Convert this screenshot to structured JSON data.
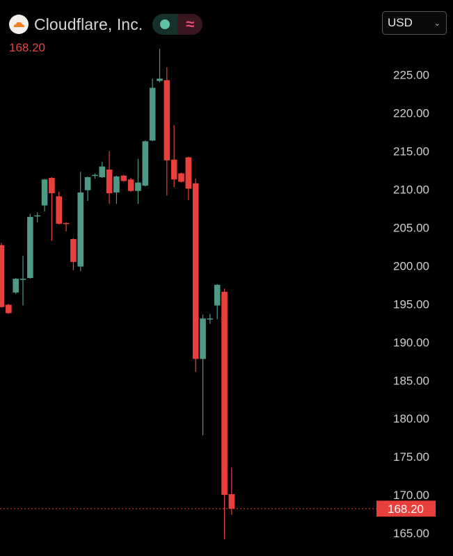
{
  "header": {
    "company": "Cloudflare, Inc.",
    "logo": "cloudflare-logo",
    "price": "168.20",
    "currency": "USD",
    "toggle_icons": [
      "dot-icon",
      "wave-icon"
    ]
  },
  "colors": {
    "up": "#4f9a86",
    "down": "#e8403d",
    "price_line": "#e8403d",
    "axis_text": "#cfcfcf"
  },
  "chart_data": {
    "type": "candlestick",
    "ylim": [
      162.0,
      234.8
    ],
    "y_ticks": [
      "225.00",
      "220.00",
      "215.00",
      "210.00",
      "205.00",
      "200.00",
      "195.00",
      "190.00",
      "185.00",
      "180.00",
      "175.00",
      "170.00",
      "165.00"
    ],
    "last_price": 168.2,
    "last_price_label": "168.20",
    "candles": [
      {
        "o": 202.7,
        "h": 203.0,
        "l": 194.5,
        "c": 194.6
      },
      {
        "o": 194.9,
        "h": 195.0,
        "l": 193.7,
        "c": 193.8
      },
      {
        "o": 196.5,
        "h": 198.4,
        "l": 196.3,
        "c": 198.3
      },
      {
        "o": 198.2,
        "h": 201.3,
        "l": 194.8,
        "c": 198.3
      },
      {
        "o": 198.4,
        "h": 206.8,
        "l": 198.3,
        "c": 206.4
      },
      {
        "o": 206.5,
        "h": 207.0,
        "l": 205.7,
        "c": 206.6
      },
      {
        "o": 207.9,
        "h": 211.4,
        "l": 207.1,
        "c": 211.3
      },
      {
        "o": 211.5,
        "h": 211.6,
        "l": 203.3,
        "c": 209.5
      },
      {
        "o": 209.1,
        "h": 209.7,
        "l": 205.4,
        "c": 205.5
      },
      {
        "o": 205.6,
        "h": 205.7,
        "l": 204.5,
        "c": 205.5
      },
      {
        "o": 203.5,
        "h": 203.6,
        "l": 199.4,
        "c": 200.5
      },
      {
        "o": 199.9,
        "h": 212.3,
        "l": 199.3,
        "c": 209.6
      },
      {
        "o": 209.9,
        "h": 211.7,
        "l": 208.5,
        "c": 211.6
      },
      {
        "o": 211.8,
        "h": 212.1,
        "l": 211.4,
        "c": 211.9
      },
      {
        "o": 211.6,
        "h": 213.6,
        "l": 211.5,
        "c": 213.0
      },
      {
        "o": 212.6,
        "h": 215.0,
        "l": 208.1,
        "c": 209.5
      },
      {
        "o": 209.6,
        "h": 211.8,
        "l": 208.1,
        "c": 211.7
      },
      {
        "o": 211.8,
        "h": 211.9,
        "l": 211.0,
        "c": 211.1
      },
      {
        "o": 211.3,
        "h": 211.5,
        "l": 209.7,
        "c": 209.8
      },
      {
        "o": 209.8,
        "h": 214.0,
        "l": 208.1,
        "c": 210.9
      },
      {
        "o": 210.5,
        "h": 216.4,
        "l": 210.4,
        "c": 216.3
      },
      {
        "o": 216.4,
        "h": 224.5,
        "l": 216.3,
        "c": 223.3
      },
      {
        "o": 224.2,
        "h": 228.4,
        "l": 224.0,
        "c": 224.5
      },
      {
        "o": 224.3,
        "h": 226.0,
        "l": 209.2,
        "c": 213.8
      },
      {
        "o": 213.9,
        "h": 218.4,
        "l": 210.3,
        "c": 211.3
      },
      {
        "o": 212.1,
        "h": 212.2,
        "l": 210.9,
        "c": 211.0
      },
      {
        "o": 214.2,
        "h": 214.3,
        "l": 208.6,
        "c": 210.1
      },
      {
        "o": 210.8,
        "h": 211.4,
        "l": 186.1,
        "c": 187.8
      },
      {
        "o": 187.8,
        "h": 193.6,
        "l": 177.8,
        "c": 193.1
      },
      {
        "o": 193.0,
        "h": 193.7,
        "l": 192.4,
        "c": 193.1
      },
      {
        "o": 194.8,
        "h": 197.6,
        "l": 193.0,
        "c": 197.5
      },
      {
        "o": 196.6,
        "h": 197.0,
        "l": 164.2,
        "c": 170.0
      },
      {
        "o": 170.1,
        "h": 173.6,
        "l": 167.4,
        "c": 168.2
      }
    ]
  }
}
